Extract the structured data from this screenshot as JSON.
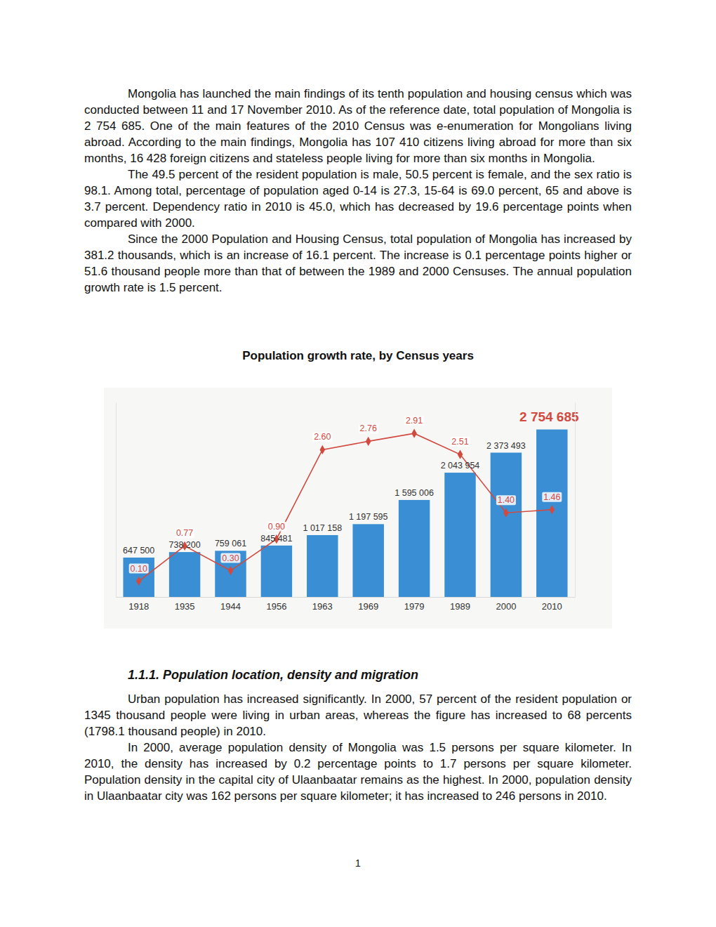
{
  "paragraphs_top": [
    "Mongolia has launched the main findings of its tenth population and housing census which was conducted between 11 and 17 November 2010. As of the reference date, total population of Mongolia is 2 754 685. One of the main features of the 2010 Census was e-enumeration for Mongolians living abroad. According to the main findings, Mongolia has 107 410 citizens living abroad for more than six months, 16 428 foreign citizens and stateless people living for more than six months in Mongolia.",
    "The 49.5 percent of the resident population is male, 50.5 percent is female, and the sex ratio is 98.1. Among total, percentage of population aged 0-14 is 27.3, 15-64 is 69.0 percent, 65 and above is 3.7 percent. Dependency ratio in 2010 is 45.0, which has decreased by 19.6 percentage points when compared with 2000.",
    "Since the 2000 Population and Housing Census, total population of Mongolia has increased by 381.2 thousands, which is an increase of 16.1 percent. The increase is 0.1 percentage points higher or 51.6 thousand people more than that of between the 1989 and 2000 Censuses. The annual population growth rate is 1.5 percent."
  ],
  "chart_title": "Population growth rate, by Census years",
  "chart_data": {
    "type": "bar",
    "categories": [
      "1918",
      "1935",
      "1944",
      "1956",
      "1963",
      "1969",
      "1979",
      "1989",
      "2000",
      "2010"
    ],
    "ylim": [
      0,
      3200000
    ],
    "y2lim": [
      -0.2,
      3.5
    ],
    "tick_labels": "x",
    "data_labels": true,
    "series": [
      {
        "type": "bar",
        "color": "#3a8fd4",
        "values": [
          647500,
          738200,
          759061,
          845481,
          1017158,
          1197595,
          1595006,
          2043954,
          2373493,
          2754685
        ],
        "value_labels": [
          "647 500",
          "738 200",
          "759 061",
          "845 481",
          "1 017 158",
          "1 197 595",
          "1 595 006",
          "2 043 954",
          "2 373 493",
          "2 754 685"
        ]
      },
      {
        "type": "line",
        "axis": "y2",
        "color": "#d2493f",
        "marker": "diamond",
        "values": [
          0.1,
          0.77,
          0.3,
          0.9,
          2.6,
          2.76,
          2.91,
          2.51,
          1.4,
          1.46
        ],
        "value_labels": [
          "0.10",
          "0.77",
          "0.30",
          "0.90",
          "2.60",
          "2.76",
          "2.91",
          "2.51",
          "1.40",
          "1.46"
        ]
      }
    ]
  },
  "section_heading": "1.1.1.  Population location, density and migration",
  "paragraphs_bottom": [
    "Urban population has increased significantly. In 2000, 57 percent of the resident population or 1345 thousand people were living in urban areas, whereas the figure has increased to 68 percents (1798.1 thousand people) in 2010.",
    "In 2000, average population density of Mongolia was 1.5 persons per square kilometer. In 2010, the density has increased by 0.2 percentage points to 1.7 persons per square kilometer. Population density in the capital city of Ulaanbaatar remains as the highest. In 2000, population density in Ulaanbaatar city was 162 persons per square kilometer; it has increased to 246 persons in 2010."
  ],
  "page_number": "1"
}
